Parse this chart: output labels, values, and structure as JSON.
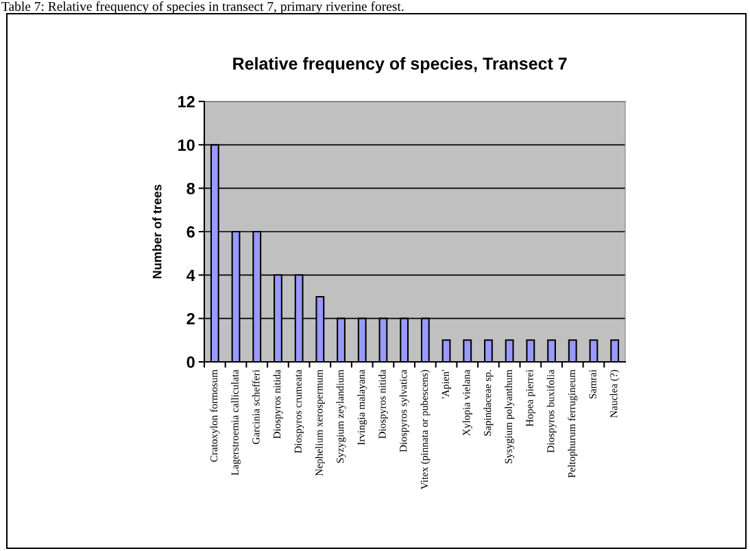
{
  "chart_data": {
    "type": "bar",
    "title": "Relative frequency of species, Transect 7",
    "annotations": [
      "Table 7: Relative frequency of species in transect 7, primary riverine forest."
    ],
    "ylabel": "Number of trees",
    "categories": [
      "Cratoxylon formosum",
      "Lagerstroemia calliculata",
      "Garcinia schefferi",
      "Diospyros nitida",
      "Diospyros crumeata",
      "Nephelium xerospermum",
      "Syzygium zeylandium",
      "Irvingia malayana",
      "Diospyros nitida",
      "Diospyros sylvatica",
      "Vitex (pinnata or pubescens)",
      "'Apien'",
      "Xylopia vielana",
      "Sapindaceae sp.",
      "Sysygium polyanthum",
      "Hopea pierrei",
      "Diospyros buxifolia",
      "Peltophurum ferrugineum",
      "Samrai",
      "Nauclea (?)"
    ],
    "values": [
      10,
      6,
      6,
      4,
      4,
      3,
      2,
      2,
      2,
      2,
      2,
      1,
      1,
      1,
      1,
      1,
      1,
      1,
      1,
      1
    ],
    "color": "#9999ff",
    "ylim": [
      0,
      12
    ],
    "yticks": [
      0,
      2,
      4,
      6,
      8,
      10,
      12
    ],
    "grid": "y",
    "legend": false
  }
}
